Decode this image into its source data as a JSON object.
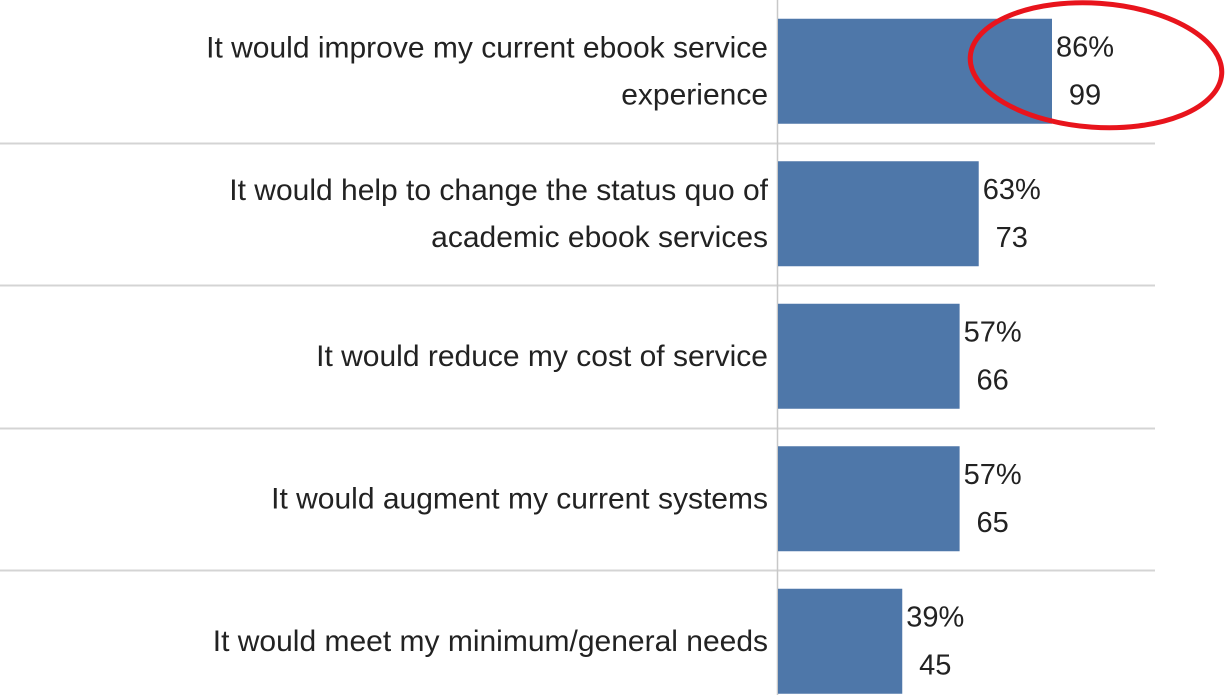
{
  "chart_data": {
    "type": "bar",
    "orientation": "horizontal",
    "title": "",
    "xlabel": "",
    "ylabel": "",
    "categories": [
      [
        "It would improve my current ebook service",
        "experience"
      ],
      [
        "It would help to change the status quo of",
        "academic ebook services"
      ],
      [
        "It would reduce my cost of service"
      ],
      [
        "It would augment my current systems"
      ],
      [
        "It would meet my minimum/general needs"
      ]
    ],
    "series": [
      {
        "percent_labels": [
          "86%",
          "63%",
          "57%",
          "57%",
          "39%"
        ],
        "values": [
          86,
          63,
          57,
          57,
          39
        ],
        "counts": [
          "99",
          "73",
          "66",
          "65",
          "45"
        ]
      }
    ],
    "xlim": [
      0,
      100
    ],
    "grid": false,
    "legend": "none",
    "annotations": [
      {
        "type": "ellipse-highlight",
        "target_category_index": 0
      }
    ]
  },
  "colors": {
    "bar": "#4e77a9",
    "separator": "#d4d4d4",
    "axis": "#c8c8c8",
    "text": "#222222",
    "highlight": "#e8141c"
  }
}
